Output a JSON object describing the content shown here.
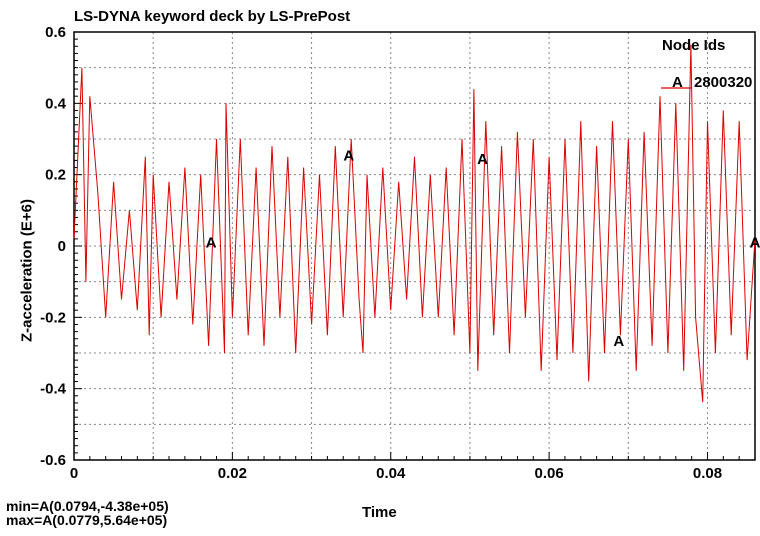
{
  "chart_data": {
    "type": "line",
    "title": "LS-DYNA keyword deck by LS-PrePost",
    "xlabel": "Time",
    "ylabel": "Z-acceleration (E+6)",
    "xlim": [
      0,
      0.086
    ],
    "ylim": [
      -0.6,
      0.6
    ],
    "x_ticks": [
      "0",
      "0.02",
      "0.04",
      "0.06",
      "0.08"
    ],
    "y_ticks": [
      "0.6",
      "0.4",
      "0.2",
      "0",
      "-0.2",
      "-0.4",
      "-0.6"
    ],
    "grid": true,
    "legend_title": "Node Ids",
    "legend_placement": "top-right",
    "series": [
      {
        "name": "2800320",
        "marker_label": "A",
        "color": "#dd0000",
        "x": [
          0,
          0.001,
          0.0015,
          0.002,
          0.003,
          0.004,
          0.005,
          0.006,
          0.007,
          0.008,
          0.009,
          0.0095,
          0.01,
          0.011,
          0.012,
          0.013,
          0.014,
          0.015,
          0.016,
          0.017,
          0.018,
          0.019,
          0.0192,
          0.02,
          0.021,
          0.022,
          0.023,
          0.024,
          0.025,
          0.026,
          0.027,
          0.028,
          0.029,
          0.03,
          0.031,
          0.032,
          0.033,
          0.034,
          0.035,
          0.036,
          0.0365,
          0.037,
          0.038,
          0.039,
          0.04,
          0.041,
          0.042,
          0.043,
          0.044,
          0.045,
          0.046,
          0.047,
          0.048,
          0.049,
          0.05,
          0.0505,
          0.051,
          0.052,
          0.053,
          0.054,
          0.055,
          0.056,
          0.057,
          0.058,
          0.059,
          0.06,
          0.061,
          0.062,
          0.063,
          0.064,
          0.065,
          0.066,
          0.067,
          0.068,
          0.069,
          0.07,
          0.071,
          0.072,
          0.073,
          0.074,
          0.075,
          0.076,
          0.077,
          0.0779,
          0.0785,
          0.0794,
          0.08,
          0.081,
          0.082,
          0.083,
          0.084,
          0.085,
          0.086
        ],
        "y": [
          0.02,
          0.5,
          -0.1,
          0.42,
          0.15,
          -0.2,
          0.18,
          -0.15,
          0.1,
          -0.18,
          0.25,
          -0.25,
          0.2,
          -0.2,
          0.18,
          -0.15,
          0.22,
          -0.22,
          0.2,
          -0.28,
          0.3,
          -0.3,
          0.4,
          -0.2,
          0.3,
          -0.25,
          0.22,
          -0.28,
          0.28,
          -0.2,
          0.25,
          -0.3,
          0.22,
          -0.22,
          0.2,
          -0.25,
          0.28,
          -0.2,
          0.3,
          -0.15,
          -0.3,
          0.2,
          -0.2,
          0.22,
          -0.18,
          0.18,
          -0.15,
          0.25,
          -0.2,
          0.2,
          -0.2,
          0.22,
          -0.25,
          0.3,
          -0.3,
          0.44,
          -0.35,
          0.35,
          -0.25,
          0.28,
          -0.3,
          0.32,
          -0.2,
          0.3,
          -0.35,
          0.25,
          -0.32,
          0.3,
          -0.3,
          0.35,
          -0.38,
          0.28,
          -0.3,
          0.35,
          -0.25,
          0.3,
          -0.35,
          0.32,
          -0.28,
          0.42,
          -0.3,
          0.4,
          -0.35,
          0.564,
          -0.2,
          -0.438,
          0.35,
          -0.3,
          0.38,
          -0.25,
          0.35,
          -0.32,
          0.02
        ]
      }
    ],
    "series_markers": [
      {
        "x": 0.0173,
        "y": 0.01
      },
      {
        "x": 0.0347,
        "y": 0.254
      },
      {
        "x": 0.0516,
        "y": 0.244
      },
      {
        "x": 0.0688,
        "y": -0.266
      },
      {
        "x": 0.086,
        "y": 0.01
      }
    ]
  },
  "stats": {
    "min": "min=A(0.0794,-4.38e+05)",
    "max": "max=A(0.0779,5.64e+05)"
  }
}
